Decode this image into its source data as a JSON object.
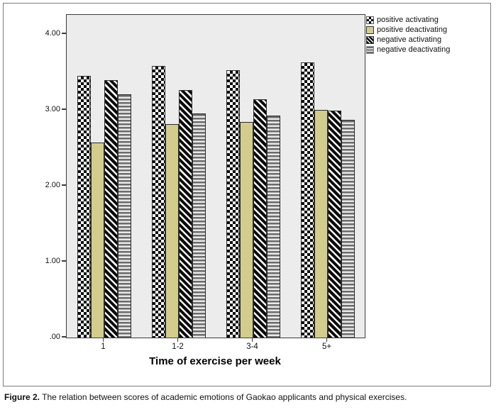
{
  "figure": {
    "caption_label": "Figure 2.",
    "caption_text": " The relation between scores of academic emotions of Gaokao applicants and physical exercises."
  },
  "chart_data": {
    "type": "bar",
    "title": "",
    "xlabel": "Time of exercise per week",
    "ylabel": "",
    "categories": [
      "1",
      "1-2",
      "3-4",
      "5+"
    ],
    "series": [
      {
        "name": "positive activating",
        "pattern": "checkerboard",
        "values": [
          3.45,
          3.58,
          3.52,
          3.63
        ]
      },
      {
        "name": "positive deactivating",
        "pattern": "solid-khaki",
        "color": "#d2cd8d",
        "values": [
          2.57,
          2.81,
          2.84,
          3.0
        ]
      },
      {
        "name": "negative activating",
        "pattern": "diagonal-stripes",
        "values": [
          3.39,
          3.26,
          3.14,
          2.99
        ]
      },
      {
        "name": "negative deactivating",
        "pattern": "horizontal-stripes",
        "values": [
          3.21,
          2.95,
          2.93,
          2.87
        ]
      }
    ],
    "yticks": [
      {
        "label": "4.00",
        "value": 4
      },
      {
        "label": "3.00",
        "value": 3
      },
      {
        "label": "2.00",
        "value": 2
      },
      {
        "label": "1.00",
        "value": 1
      },
      {
        "label": ".00",
        "value": 0
      }
    ],
    "ylim": [
      0,
      4.25
    ],
    "grid": false,
    "legend_position": "outside-top-right",
    "plot_background": "#ececec"
  }
}
